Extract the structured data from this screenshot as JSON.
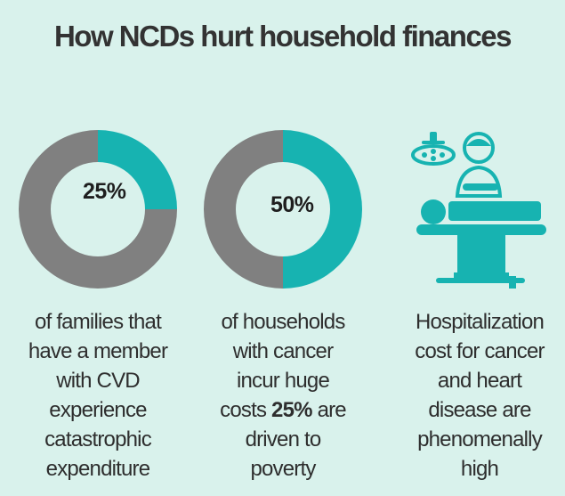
{
  "title": "How NCDs hurt household finances",
  "colors": {
    "background": "#d9f2ec",
    "accent": "#17b3b1",
    "gray": "#808080"
  },
  "chart_data": [
    {
      "type": "pie",
      "values": [
        25,
        75
      ],
      "label": "25%",
      "caption": [
        "of families that",
        "have a member",
        "with CVD",
        "experience",
        "catastrophic",
        "expenditure"
      ]
    },
    {
      "type": "pie",
      "values": [
        50,
        50
      ],
      "label": "50%",
      "caption": [
        "of households",
        "with cancer",
        "incur huge",
        "costs",
        "25%",
        "are",
        "driven to",
        "poverty"
      ]
    }
  ],
  "panel3": {
    "icon": "surgery-icon",
    "caption": [
      "Hospitalization",
      "cost for cancer",
      "and heart",
      "disease are",
      "phenomenally",
      "high"
    ]
  }
}
